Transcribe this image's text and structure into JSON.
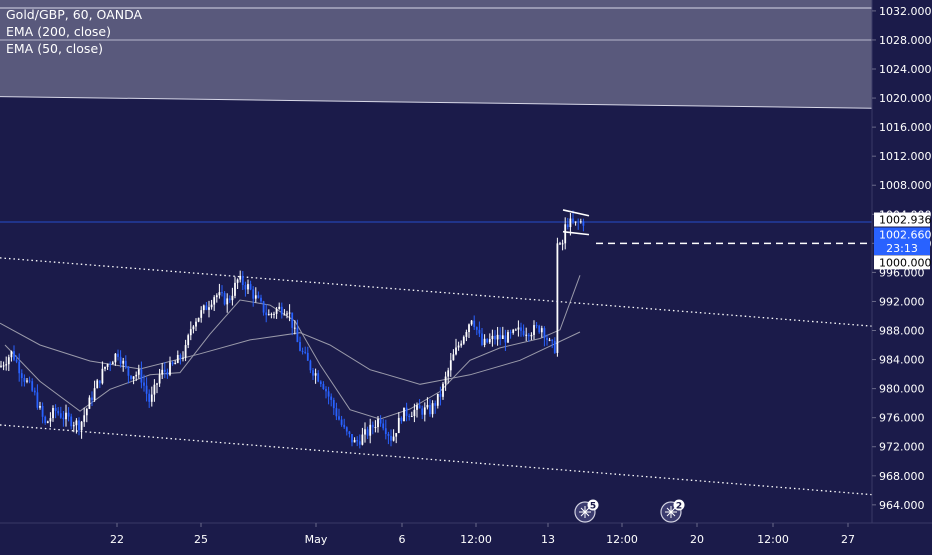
{
  "legend": {
    "symbol": "Gold/GBP, 60, OANDA",
    "ema200": "EMA (200, close)",
    "ema50": "EMA (50, close)"
  },
  "colors": {
    "background": "#1b1b4a",
    "candle_up": "#ffffff",
    "candle_down": "#2962ff",
    "ema": "#9a9aaa",
    "last_price_label": "#ffffff",
    "prev_close_label": "#2962ff",
    "zone": "#8d8da6"
  },
  "chart_data": {
    "type": "candlestick",
    "symbol": "Gold/GBP",
    "interval": "60",
    "source": "OANDA",
    "y_ticks": [
      1032,
      1028,
      1024,
      1020,
      1016,
      1012,
      1008,
      1004,
      1000,
      996,
      992,
      988,
      984,
      980,
      976,
      972,
      968,
      964
    ],
    "y_tick_labels": [
      "1032.000",
      "1028.000",
      "1024.000",
      "1020.000",
      "1016.000",
      "1012.000",
      "1008.000",
      "1004.000",
      "1000.000",
      "996.000",
      "992.000",
      "988.000",
      "984.000",
      "980.000",
      "976.000",
      "972.000",
      "968.000",
      "964.000"
    ],
    "ylim": [
      961.5,
      1033.5
    ],
    "x_tick_labels": [
      "22",
      "25",
      "May",
      "6",
      "12:00",
      "13",
      "12:00",
      "20",
      "12:00",
      "27"
    ],
    "price_labels": {
      "last_price": "1002.936",
      "prev_price": "1002.660",
      "countdown": "23:13",
      "level": "1000.000",
      "last_value": 1002.936,
      "prev_value": 1002.66,
      "level_value": 1000.0
    },
    "event_markers": [
      {
        "count": "5"
      },
      {
        "count": "2"
      }
    ],
    "zone": {
      "top": 1040,
      "mid": 1028,
      "bottom": 1018.6
    },
    "channel_top_line": {
      "from": 998,
      "to": 988.6
    },
    "channel_bottom_line": {
      "from": 975,
      "to": 965.4
    },
    "ema200": [
      {
        "t": 0,
        "v": 989
      },
      {
        "t": 40,
        "v": 986
      },
      {
        "t": 90,
        "v": 983.8
      },
      {
        "t": 140,
        "v": 982.7
      },
      {
        "t": 200,
        "v": 984.8
      },
      {
        "t": 250,
        "v": 986.7
      },
      {
        "t": 300,
        "v": 987.7
      },
      {
        "t": 330,
        "v": 986
      },
      {
        "t": 370,
        "v": 982.6
      },
      {
        "t": 420,
        "v": 980.6
      },
      {
        "t": 470,
        "v": 981.9
      },
      {
        "t": 520,
        "v": 983.9
      },
      {
        "t": 580,
        "v": 987.8
      }
    ],
    "ema50": [
      {
        "t": 5,
        "v": 986
      },
      {
        "t": 40,
        "v": 981
      },
      {
        "t": 80,
        "v": 976.9
      },
      {
        "t": 110,
        "v": 979.9
      },
      {
        "t": 150,
        "v": 981.9
      },
      {
        "t": 180,
        "v": 982.2
      },
      {
        "t": 210,
        "v": 987.5
      },
      {
        "t": 240,
        "v": 992.2
      },
      {
        "t": 270,
        "v": 991.5
      },
      {
        "t": 295,
        "v": 989.3
      },
      {
        "t": 320,
        "v": 983.3
      },
      {
        "t": 350,
        "v": 977.1
      },
      {
        "t": 380,
        "v": 975.8
      },
      {
        "t": 410,
        "v": 977.2
      },
      {
        "t": 440,
        "v": 979.6
      },
      {
        "t": 470,
        "v": 983.9
      },
      {
        "t": 500,
        "v": 985.6
      },
      {
        "t": 540,
        "v": 986.9
      },
      {
        "t": 560,
        "v": 988.1
      },
      {
        "t": 580,
        "v": 995.6
      }
    ],
    "candle_path": [
      {
        "t": 0,
        "v": 983
      },
      {
        "t": 12,
        "v": 985
      },
      {
        "t": 22,
        "v": 982
      },
      {
        "t": 35,
        "v": 979
      },
      {
        "t": 45,
        "v": 975
      },
      {
        "t": 55,
        "v": 977
      },
      {
        "t": 65,
        "v": 976
      },
      {
        "t": 80,
        "v": 975
      },
      {
        "t": 92,
        "v": 979
      },
      {
        "t": 105,
        "v": 983
      },
      {
        "t": 118,
        "v": 985
      },
      {
        "t": 128,
        "v": 982
      },
      {
        "t": 140,
        "v": 982
      },
      {
        "t": 150,
        "v": 978
      },
      {
        "t": 160,
        "v": 982
      },
      {
        "t": 172,
        "v": 983
      },
      {
        "t": 185,
        "v": 985
      },
      {
        "t": 192,
        "v": 989
      },
      {
        "t": 205,
        "v": 991
      },
      {
        "t": 215,
        "v": 993
      },
      {
        "t": 228,
        "v": 992
      },
      {
        "t": 238,
        "v": 995
      },
      {
        "t": 248,
        "v": 994
      },
      {
        "t": 258,
        "v": 992
      },
      {
        "t": 268,
        "v": 990
      },
      {
        "t": 278,
        "v": 991
      },
      {
        "t": 288,
        "v": 991
      },
      {
        "t": 298,
        "v": 986
      },
      {
        "t": 310,
        "v": 983
      },
      {
        "t": 322,
        "v": 981
      },
      {
        "t": 335,
        "v": 977
      },
      {
        "t": 345,
        "v": 974
      },
      {
        "t": 355,
        "v": 972.5
      },
      {
        "t": 368,
        "v": 974
      },
      {
        "t": 380,
        "v": 976
      },
      {
        "t": 392,
        "v": 973
      },
      {
        "t": 402,
        "v": 976.5
      },
      {
        "t": 415,
        "v": 977
      },
      {
        "t": 430,
        "v": 977
      },
      {
        "t": 440,
        "v": 979
      },
      {
        "t": 452,
        "v": 984
      },
      {
        "t": 462,
        "v": 987
      },
      {
        "t": 472,
        "v": 990
      },
      {
        "t": 482,
        "v": 986
      },
      {
        "t": 495,
        "v": 987
      },
      {
        "t": 508,
        "v": 987
      },
      {
        "t": 520,
        "v": 988
      },
      {
        "t": 532,
        "v": 988
      },
      {
        "t": 542,
        "v": 988.5
      },
      {
        "t": 550,
        "v": 986
      },
      {
        "t": 556,
        "v": 985.5
      },
      {
        "t": 560,
        "v": 997
      },
      {
        "t": 566,
        "v": 1003
      },
      {
        "t": 574,
        "v": 1002.5
      },
      {
        "t": 582,
        "v": 1003
      }
    ]
  }
}
